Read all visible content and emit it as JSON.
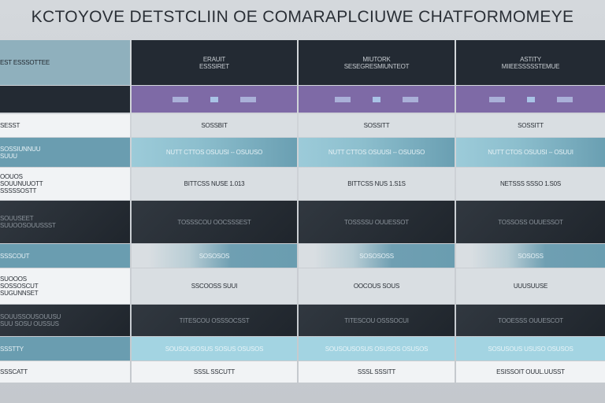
{
  "title": "KCTOYOVE DETSTCLIIN OE COMARAPLCIUWE CHATFORMOMEYE",
  "colors": {
    "header": "#232a33",
    "accent_purple": "#7e6aa6",
    "teal": "#6a9db0",
    "light_blue": "#a3d4e2"
  },
  "rows": [
    {
      "style": [
        "lhdr",
        "hdr",
        "hdr",
        "hdr"
      ],
      "cells": [
        "EST ESSSOTTEE",
        "ERAUIT\nESSSIRET",
        "MIUTORK\nSESEGRESMIUNTEOT",
        "ASTITY\nMIIEESSSSSTEMUE"
      ]
    },
    {
      "style": [
        "ldark",
        "purple",
        "purple",
        "purple"
      ],
      "cells": [
        "",
        "",
        "",
        ""
      ],
      "pills": true
    },
    {
      "style": [
        "white",
        "light",
        "light",
        "light"
      ],
      "cells": [
        "SESST",
        "SOSSBIT",
        "SOSSITT",
        "SOSSITT"
      ]
    },
    {
      "style": [
        "teal",
        "lblue",
        "lblue",
        "lblue"
      ],
      "cells": [
        "SOSSIUNNUU\nSUUU",
        "NUTT CTTOS OSUUSI -- OSUUSO",
        "NUTT CTTOS OSUUSI -- OSUUSO",
        "NUTT CTOS OSUUSI -- OSUUI"
      ]
    },
    {
      "style": [
        "white",
        "light",
        "light",
        "light"
      ],
      "cells": [
        "OOUOS\nSOUUNUUOTT\nSSSSSOSTT",
        "BITTCSS NUSE 1.013",
        "BITTCSS NUS 1.S1S",
        "NETSSS SSSO 1.S0S"
      ]
    },
    {
      "style": [
        "dark",
        "dark",
        "dark",
        "dark"
      ],
      "cells": [
        "SOUUSEET\nSUUOOSOUUSSST",
        "TOSSSCOU OOCSSSEST",
        "TOSSSSU OUUESSOT",
        "TOSSOSS OUUESSOT"
      ]
    },
    {
      "style": [
        "teal",
        "fade",
        "fade",
        "fade"
      ],
      "cells": [
        "SSSCOUT",
        "SOSOSOS",
        "SOSOSOSS",
        "SOSOSS"
      ]
    },
    {
      "style": [
        "white",
        "light",
        "light",
        "light"
      ],
      "cells": [
        "SUOOOS\nSOSSOSCUT\nSUGUNNSET",
        "SSCOOSS SUUI",
        "OOCOUS SOUS",
        "UUUSUUSE"
      ]
    },
    {
      "style": [
        "dark",
        "dark",
        "dark",
        "dark"
      ],
      "cells": [
        "SOUUSSOUSOUUSU\nSUU SOSU OUSSUS",
        "TITESCOU OSSSOCSST",
        "TITESCOU OSSSOCUI",
        "TOOESSS OUUESCOT"
      ]
    },
    {
      "style": [
        "teal",
        "sky",
        "sky",
        "sky"
      ],
      "cells": [
        "SSSTTY",
        "SOUSOUSOSUS SOSUS OSUSOS",
        "SOUSOUSOSUS OSUSOS OSUSOS",
        "SOSUSOUS USUSO OSUSOS"
      ]
    },
    {
      "style": [
        "white",
        "white",
        "white",
        "white"
      ],
      "cells": [
        "SSSCATT",
        "SSSL SSCUTT",
        "SSSL SSSITT",
        "ESISSOIT OUUL.UUSST"
      ]
    }
  ]
}
